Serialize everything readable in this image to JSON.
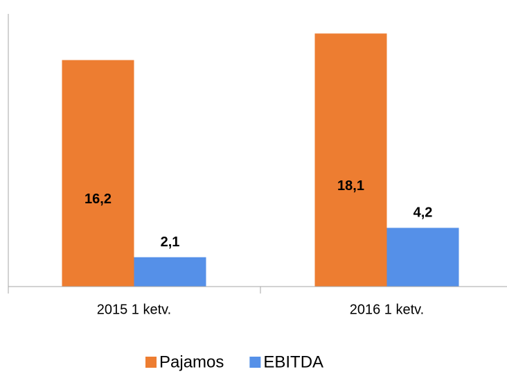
{
  "chart_data": {
    "type": "bar",
    "categories": [
      "2015 1 ketv.",
      "2016 1 ketv."
    ],
    "series": [
      {
        "name": "Pajamos",
        "color": "#ed7d31",
        "values": [
          16.2,
          18.1
        ],
        "value_labels": [
          "16,2",
          "18,1"
        ]
      },
      {
        "name": "EBITDA",
        "color": "#5590e8",
        "values": [
          2.1,
          4.2
        ],
        "value_labels": [
          "2,1",
          "4,2"
        ]
      }
    ],
    "ylim": [
      0,
      20
    ],
    "legend": "bottom"
  }
}
